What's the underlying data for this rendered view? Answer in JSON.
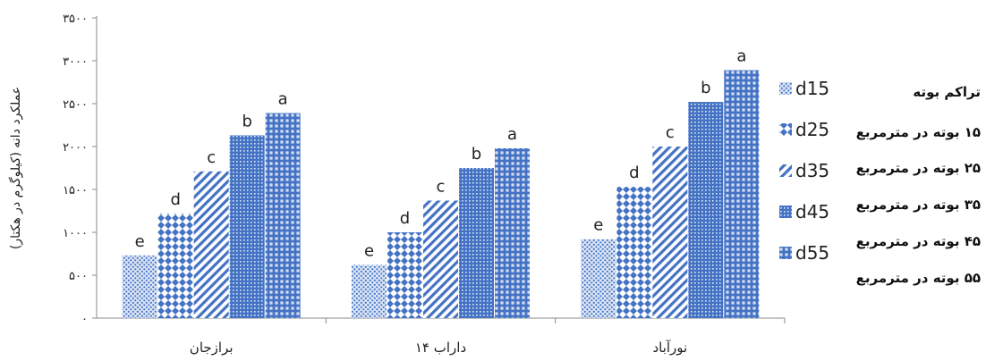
{
  "chart_data": {
    "type": "bar",
    "ylabel": "عملکرد دانه (کیلوگرم در هکتار)",
    "ylim": [
      0,
      3500
    ],
    "yticks": [
      {
        "value": 0,
        "label": "۰"
      },
      {
        "value": 500,
        "label": "۵۰۰"
      },
      {
        "value": 1000,
        "label": "۱۰۰۰"
      },
      {
        "value": 1500,
        "label": "۱۵۰۰"
      },
      {
        "value": 2000,
        "label": "۲۰۰۰"
      },
      {
        "value": 2500,
        "label": "۲۵۰۰"
      },
      {
        "value": 3000,
        "label": "۳۰۰۰"
      },
      {
        "value": 3500,
        "label": "۳۵۰۰"
      }
    ],
    "categories": [
      "برازجان",
      "داراب ۱۴",
      "نورآباد"
    ],
    "series": [
      {
        "name": "d15",
        "values": [
          730,
          620,
          920
        ],
        "labels": [
          "e",
          "e",
          "e"
        ]
      },
      {
        "name": "d25",
        "values": [
          1220,
          1000,
          1530
        ],
        "labels": [
          "d",
          "d",
          "d"
        ]
      },
      {
        "name": "d35",
        "values": [
          1710,
          1370,
          2000
        ],
        "labels": [
          "c",
          "c",
          "c"
        ]
      },
      {
        "name": "d45",
        "values": [
          2130,
          1750,
          2520
        ],
        "labels": [
          "b",
          "b",
          "b"
        ]
      },
      {
        "name": "d55",
        "values": [
          2390,
          1980,
          2890
        ],
        "labels": [
          "a",
          "a",
          "a"
        ]
      }
    ],
    "legend_position": "right",
    "grid": false
  },
  "legend_note": {
    "title": "تراکم بوته",
    "lines": [
      "۱۵ بوته در مترمربع",
      "۲۵ بوته در مترمربع",
      "۳۵ بوته در مترمربع",
      "۴۵ بوته در مترمربع",
      "۵۵ بوته در مترمربع"
    ]
  },
  "colors": {
    "bar": "#4472c4",
    "bar_light": "#dce6f5",
    "axis": "#888888"
  }
}
